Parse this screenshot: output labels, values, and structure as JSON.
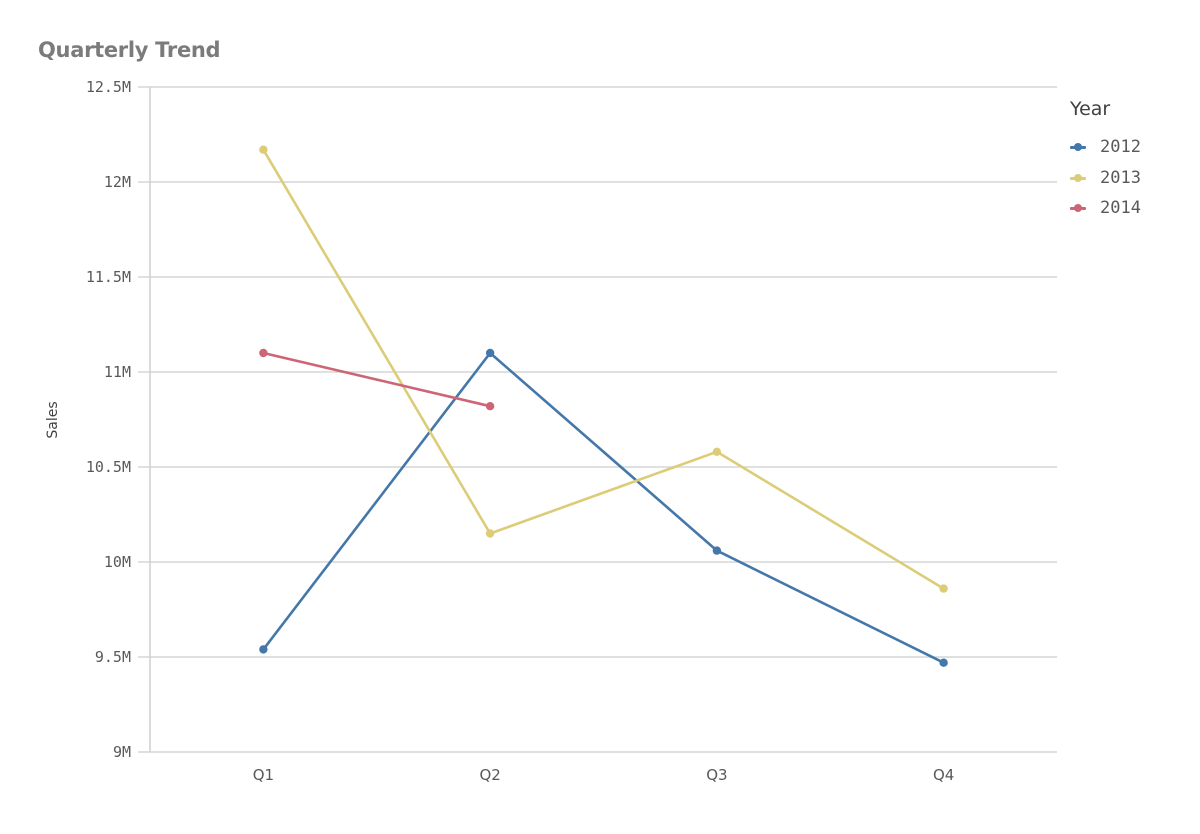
{
  "chart": {
    "title": "Quarterly Trend",
    "ylabel": "Sales",
    "legend_title": "Year"
  },
  "chart_data": {
    "type": "line",
    "title": "Quarterly Trend",
    "xlabel": "",
    "ylabel": "Sales",
    "categories": [
      "Q1",
      "Q2",
      "Q3",
      "Q4"
    ],
    "ylim": [
      9000000,
      12500000
    ],
    "yticks": [
      9000000,
      9500000,
      10000000,
      10500000,
      11000000,
      11500000,
      12000000,
      12500000
    ],
    "ytick_labels": [
      "9M",
      "9.5M",
      "10M",
      "10.5M",
      "11M",
      "11.5M",
      "12M",
      "12.5M"
    ],
    "grid": true,
    "legend_position": "right",
    "legend_title": "Year",
    "series": [
      {
        "name": "2012",
        "color": "#4477aa",
        "values": [
          9540000,
          11100000,
          10060000,
          9470000
        ]
      },
      {
        "name": "2013",
        "color": "#ddcc77",
        "values": [
          12170000,
          10150000,
          10580000,
          9860000
        ]
      },
      {
        "name": "2014",
        "color": "#cc6677",
        "values": [
          11100000,
          10820000,
          null,
          null
        ]
      }
    ]
  }
}
